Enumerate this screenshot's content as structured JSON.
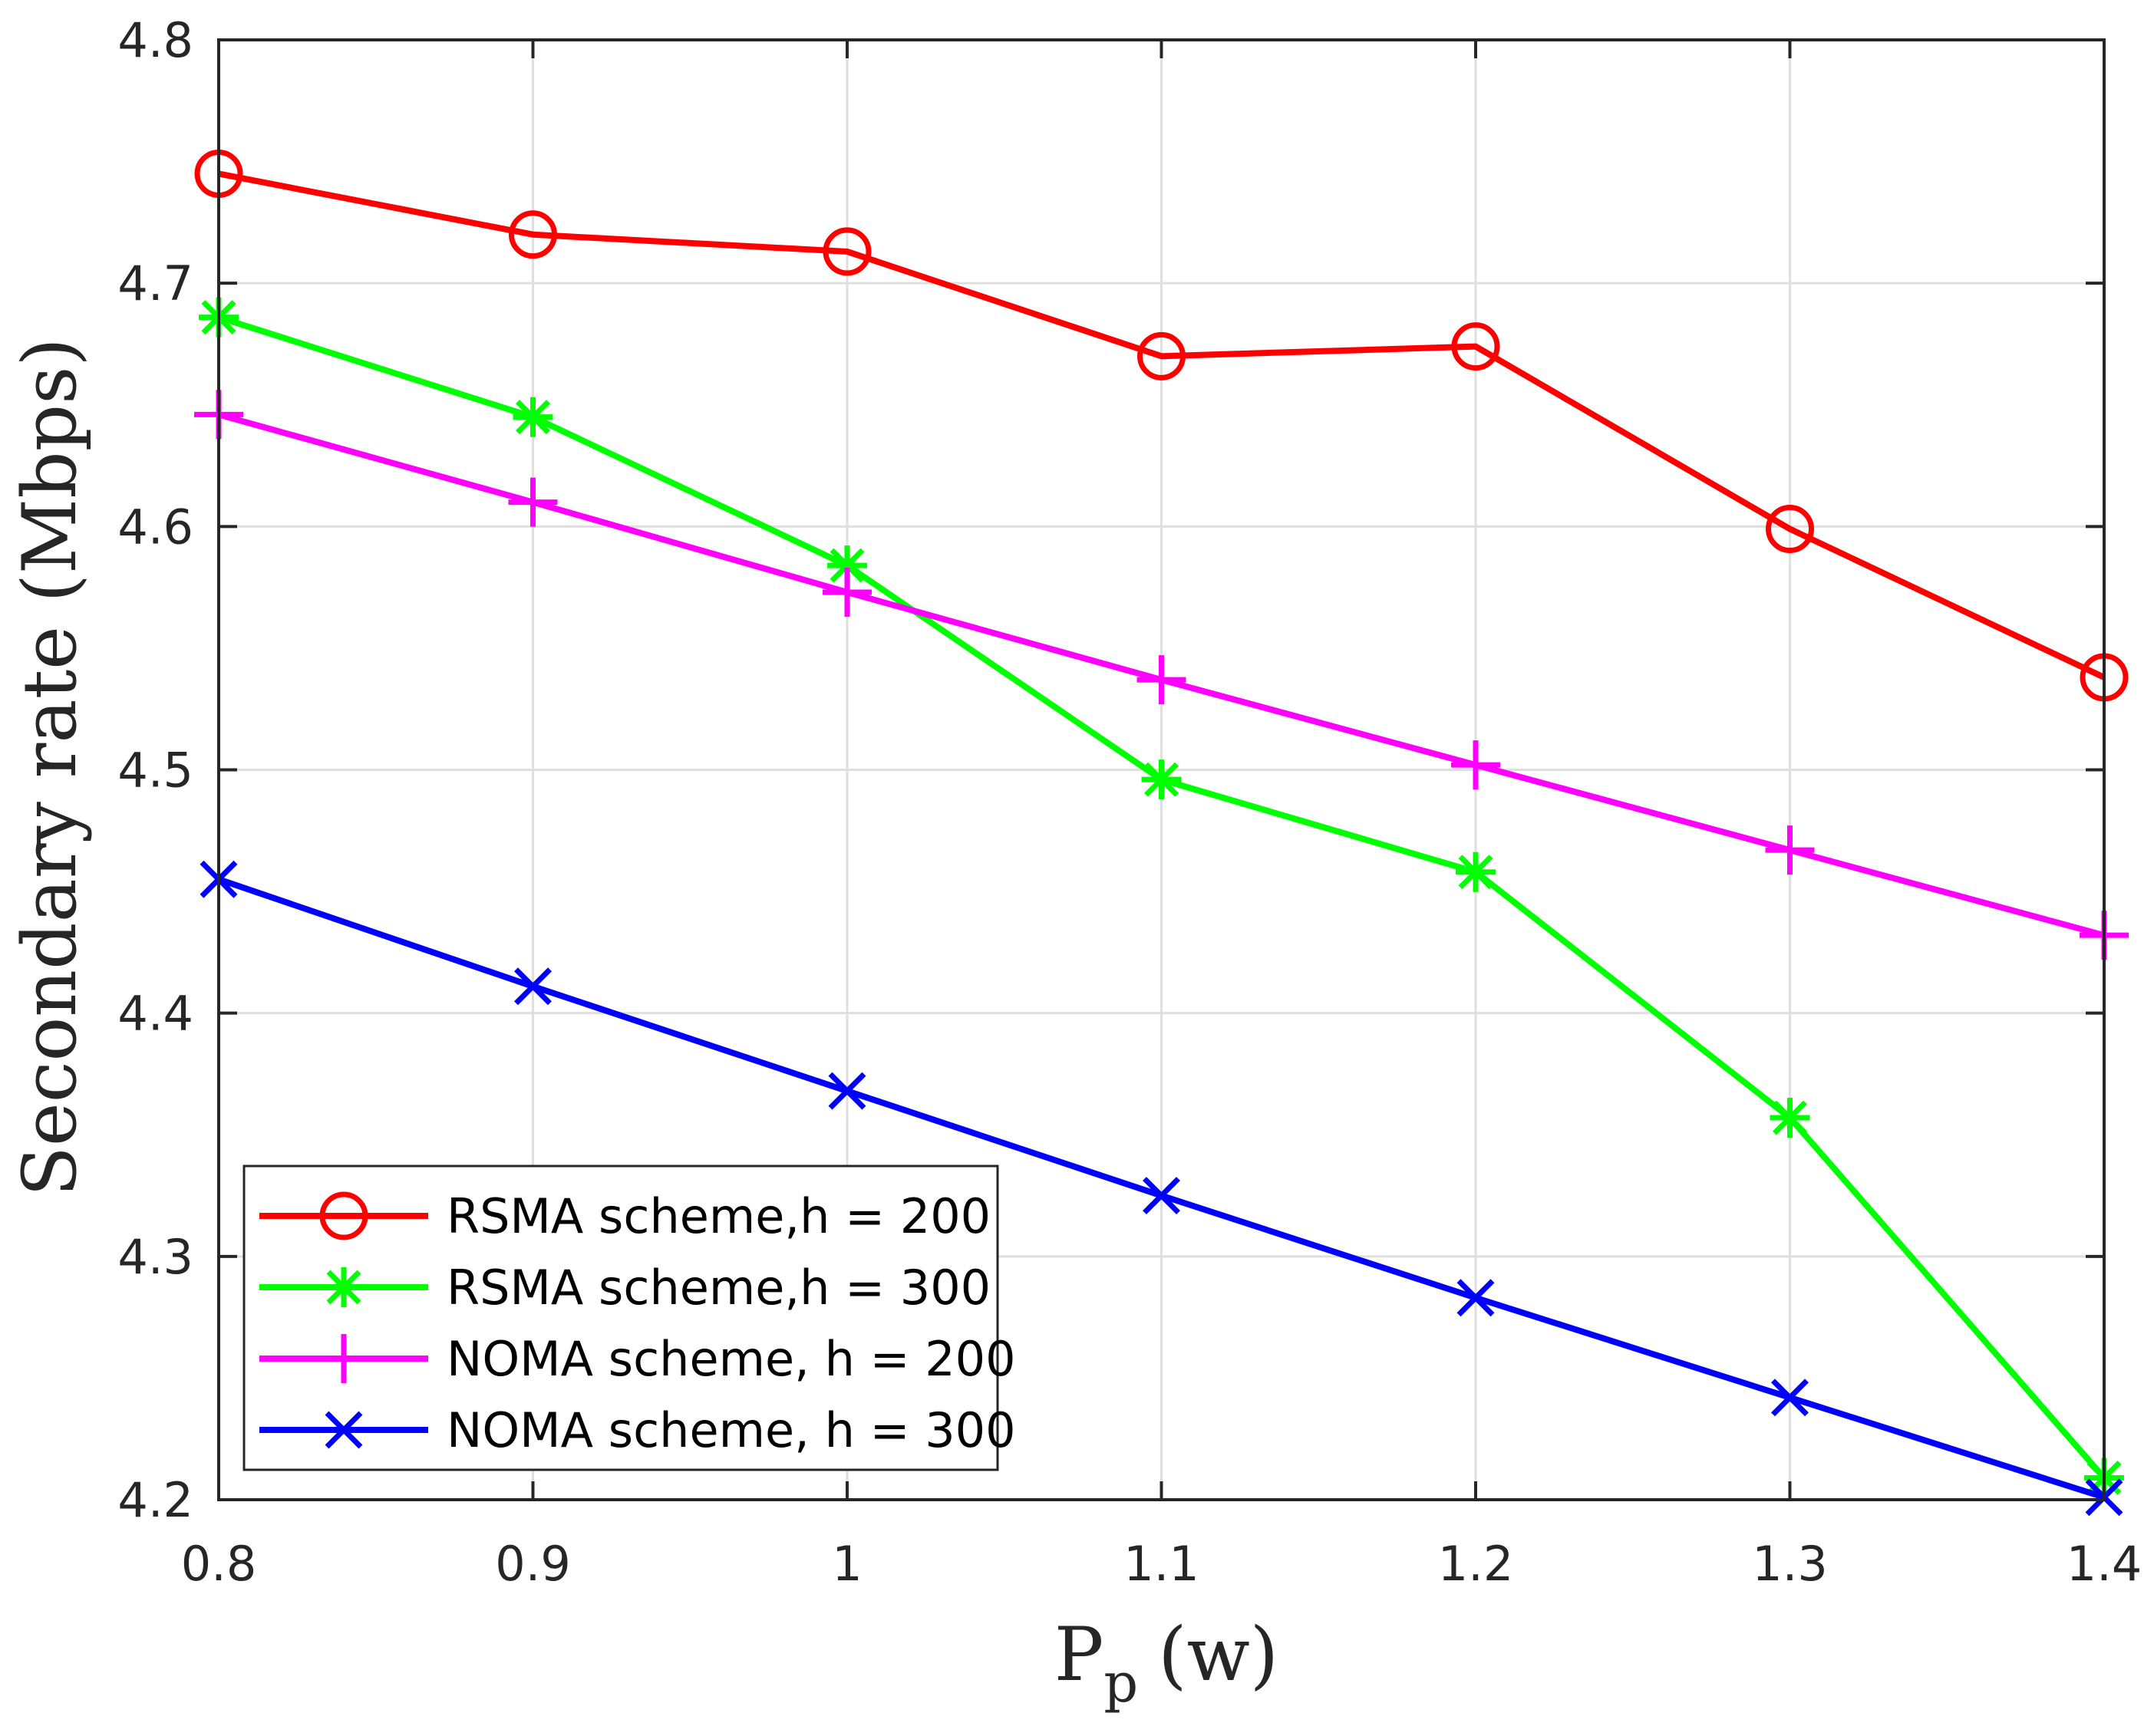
{
  "chart_data": {
    "type": "line",
    "title": "",
    "xlabel_main": "P",
    "xlabel_sub": "p",
    "xlabel_unit": "(w)",
    "ylabel": "Secondary rate (Mbps)",
    "xlim": [
      0.8,
      1.4
    ],
    "ylim": [
      4.2,
      4.8
    ],
    "grid": true,
    "legend_position": "bottom-left",
    "x": [
      0.8,
      0.9,
      1.0,
      1.1,
      1.2,
      1.3,
      1.4
    ],
    "xticks": [
      0.8,
      0.9,
      1.0,
      1.1,
      1.2,
      1.3,
      1.4
    ],
    "xtick_labels": [
      "0.8",
      "0.9",
      "1",
      "1.1",
      "1.2",
      "1.3",
      "1.4"
    ],
    "yticks": [
      4.2,
      4.3,
      4.4,
      4.5,
      4.6,
      4.7,
      4.8
    ],
    "ytick_labels": [
      "4.2",
      "4.3",
      "4.4",
      "4.5",
      "4.6",
      "4.7",
      "4.8"
    ],
    "series": [
      {
        "name": "RSMA scheme,h = 200",
        "color": "#ff0000",
        "marker": "circle",
        "values": [
          4.745,
          4.72,
          4.713,
          4.67,
          4.674,
          4.599,
          4.538
        ]
      },
      {
        "name": "RSMA scheme,h = 300",
        "color": "#00ff00",
        "marker": "asterisk",
        "values": [
          4.686,
          4.645,
          4.584,
          4.496,
          4.458,
          4.357,
          4.209
        ]
      },
      {
        "name": "NOMA scheme, h = 200",
        "color": "#ff00ff",
        "marker": "plus",
        "values": [
          4.646,
          4.61,
          4.573,
          4.537,
          4.502,
          4.467,
          4.432
        ]
      },
      {
        "name": "NOMA scheme, h = 300",
        "color": "#0000ff",
        "marker": "cross",
        "values": [
          4.455,
          4.411,
          4.368,
          4.325,
          4.283,
          4.242,
          4.201
        ]
      }
    ]
  }
}
